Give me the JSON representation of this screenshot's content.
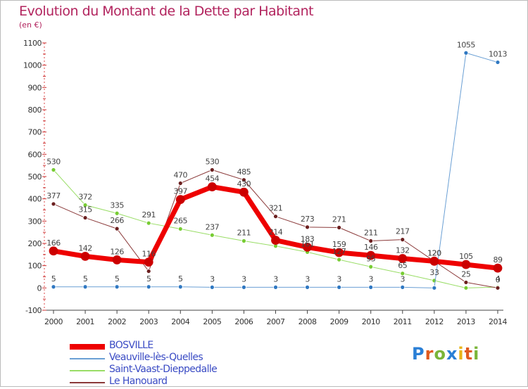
{
  "header": {
    "title": "Evolution du Montant de la Dette par Habitant",
    "unit": "(en €)"
  },
  "logo": {
    "letters": [
      "P",
      "r",
      "o",
      "x",
      "i",
      "t",
      "i"
    ],
    "colors": [
      "#2a7fd6",
      "#e05a1e",
      "#7ab539",
      "#2a7fd6",
      "#e8b418",
      "#e05a1e",
      "#7ab539"
    ]
  },
  "chart_data": {
    "type": "line",
    "title": "Evolution du Montant de la Dette par Habitant",
    "ylabel": "(en €)",
    "x": [
      "2000",
      "2001",
      "2002",
      "2003",
      "2004",
      "2005",
      "2006",
      "2007",
      "2008",
      "2009",
      "2010",
      "2011",
      "2012",
      "2013",
      "2014"
    ],
    "ylim": [
      -100,
      1100
    ],
    "yticks": [
      "-100",
      "0",
      "100",
      "200",
      "300",
      "400",
      "500",
      "600",
      "700",
      "800",
      "900",
      "1000",
      "1100"
    ],
    "grid": false,
    "legend_position": "bottom-left",
    "series": [
      {
        "name": "BOSVILLE",
        "color": "#ee0000",
        "marker_color": "#cc0000",
        "line_width": 7,
        "values": [
          166,
          142,
          126,
          116,
          397,
          454,
          430,
          214,
          183,
          159,
          146,
          132,
          120,
          105,
          89
        ],
        "labels": [
          "166",
          "142",
          "126",
          "116",
          "397",
          "454",
          "430",
          "214",
          "183",
          "159",
          "146",
          "132",
          "120",
          "105",
          "89"
        ]
      },
      {
        "name": "Veauville-lès-Quelles",
        "color": "#6a9fd4",
        "marker_color": "#2f78c2",
        "line_width": 1,
        "values": [
          5,
          5,
          5,
          5,
          5,
          3,
          3,
          3,
          3,
          3,
          3,
          3,
          0,
          1055,
          1013
        ],
        "labels": [
          "5",
          "5",
          "5",
          "5",
          "5",
          "3",
          "3",
          "3",
          "3",
          "3",
          "3",
          "3",
          "",
          "1055",
          "1013"
        ]
      },
      {
        "name": "Saint-Vaast-Dieppedalle",
        "color": "#99dd66",
        "marker_color": "#77cc33",
        "line_width": 1,
        "values": [
          530,
          372,
          335,
          291,
          265,
          237,
          211,
          188,
          161,
          127,
          95,
          65,
          33,
          0,
          4
        ],
        "labels": [
          "530",
          "372",
          "335",
          "291",
          "265",
          "237",
          "211",
          "",
          "161",
          "127",
          "95",
          "65",
          "33",
          "",
          "4"
        ]
      },
      {
        "name": "Le Hanouard",
        "color": "#8b3a3a",
        "marker_color": "#6b1f1f",
        "line_width": 1,
        "values": [
          377,
          315,
          266,
          75,
          470,
          530,
          485,
          321,
          273,
          271,
          211,
          217,
          120,
          25,
          0
        ],
        "labels": [
          "377",
          "315",
          "266",
          "",
          "470",
          "530",
          "485",
          "321",
          "273",
          "271",
          "211",
          "217",
          "120",
          "25",
          "0"
        ]
      }
    ]
  }
}
